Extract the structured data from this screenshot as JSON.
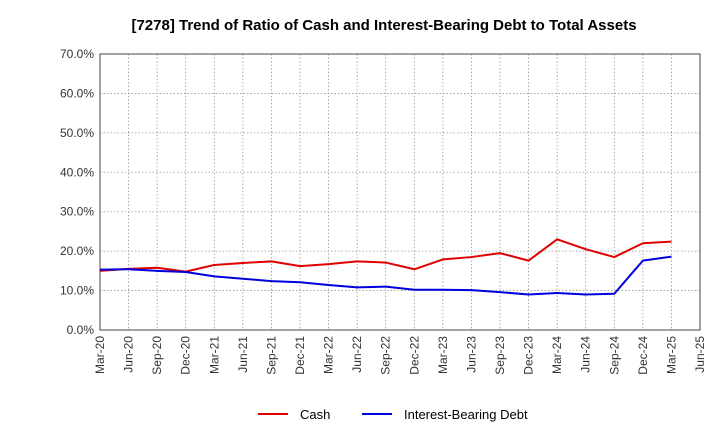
{
  "chart_data": {
    "type": "line",
    "title": "[7278]  Trend of Ratio of Cash and Interest-Bearing Debt to Total Assets",
    "xlabel": "",
    "ylabel": "",
    "ylim": [
      0,
      70
    ],
    "y_ticks": [
      "0.0%",
      "10.0%",
      "20.0%",
      "30.0%",
      "40.0%",
      "50.0%",
      "60.0%",
      "70.0%"
    ],
    "x_tick_labels": [
      "Mar-20",
      "Jun-20",
      "Sep-20",
      "Dec-20",
      "Mar-21",
      "Jun-21",
      "Sep-21",
      "Dec-21",
      "Mar-22",
      "Jun-22",
      "Sep-22",
      "Dec-22",
      "Mar-23",
      "Jun-23",
      "Sep-23",
      "Dec-23",
      "Mar-24",
      "Jun-24",
      "Sep-24",
      "Dec-24",
      "Mar-25",
      "Jun-25"
    ],
    "categories": [
      "Mar-20",
      "Jun-20",
      "Sep-20",
      "Dec-20",
      "Mar-21",
      "Jun-21",
      "Sep-21",
      "Dec-21",
      "Mar-22",
      "Jun-22",
      "Sep-22",
      "Dec-22",
      "Mar-23",
      "Jun-23",
      "Sep-23",
      "Dec-23",
      "Mar-24",
      "Jun-24",
      "Sep-24",
      "Dec-24",
      "Mar-25"
    ],
    "grid": true,
    "legend_position": "bottom-center",
    "series": [
      {
        "name": "Cash",
        "color": "#e00000",
        "values": [
          15.0,
          15.5,
          15.8,
          14.8,
          16.5,
          17.0,
          17.4,
          16.2,
          16.7,
          17.4,
          17.1,
          15.4,
          17.9,
          18.5,
          19.5,
          17.6,
          23.0,
          20.5,
          18.5,
          22.0,
          22.4
        ]
      },
      {
        "name": "Interest-Bearing Debt",
        "color": "#0000dd",
        "values": [
          15.3,
          15.4,
          15.0,
          14.7,
          13.6,
          13.0,
          12.4,
          12.1,
          11.4,
          10.8,
          11.0,
          10.2,
          10.2,
          10.1,
          9.6,
          9.0,
          9.4,
          9.0,
          9.2,
          17.6,
          18.6
        ]
      }
    ]
  }
}
